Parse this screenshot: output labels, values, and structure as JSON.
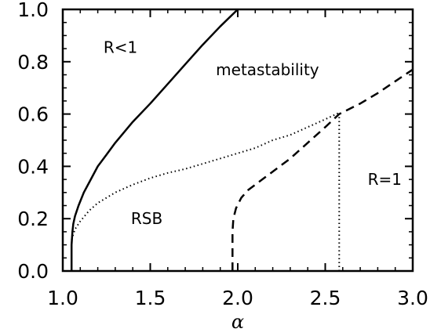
{
  "chart_data": {
    "type": "line",
    "title": "",
    "xlabel": "α",
    "ylabel": "",
    "xlim": [
      1.0,
      3.0
    ],
    "ylim": [
      0.0,
      1.0
    ],
    "x_ticks": [
      "1.0",
      "1.5",
      "2.0",
      "2.5",
      "3.0"
    ],
    "y_ticks": [
      "0.0",
      "0.2",
      "0.4",
      "0.6",
      "0.8",
      "1.0"
    ],
    "grid": false,
    "legend": "none",
    "series": [
      {
        "style": "solid",
        "x": [
          1.05,
          1.05,
          1.055,
          1.06,
          1.07,
          1.09,
          1.12,
          1.16,
          1.2,
          1.25,
          1.3,
          1.4,
          1.5,
          1.6,
          1.7,
          1.8,
          1.9,
          2.0
        ],
        "y": [
          0.0,
          0.1,
          0.15,
          0.18,
          0.21,
          0.25,
          0.3,
          0.35,
          0.4,
          0.445,
          0.49,
          0.57,
          0.64,
          0.715,
          0.79,
          0.865,
          0.935,
          1.0
        ]
      },
      {
        "style": "dotted",
        "x": [
          1.05,
          1.07,
          1.1,
          1.15,
          1.2,
          1.3,
          1.4,
          1.5,
          1.6,
          1.7,
          1.8,
          1.9,
          2.0,
          2.1,
          2.2,
          2.3,
          2.4,
          2.5,
          2.58
        ],
        "y": [
          0.12,
          0.16,
          0.19,
          0.23,
          0.26,
          0.3,
          0.33,
          0.355,
          0.375,
          0.39,
          0.41,
          0.43,
          0.45,
          0.47,
          0.5,
          0.52,
          0.55,
          0.58,
          0.605
        ]
      },
      {
        "style": "dashed",
        "x": [
          1.97,
          1.97,
          1.975,
          1.99,
          2.02,
          2.06,
          2.12,
          2.2,
          2.3,
          2.4,
          2.5,
          2.58,
          2.7,
          2.8,
          2.9,
          3.0
        ],
        "y": [
          0.0,
          0.15,
          0.2,
          0.24,
          0.28,
          0.31,
          0.34,
          0.38,
          0.43,
          0.49,
          0.55,
          0.6,
          0.64,
          0.68,
          0.725,
          0.77
        ]
      },
      {
        "style": "dotted",
        "x": [
          2.58,
          2.58
        ],
        "y": [
          0.0,
          0.605
        ]
      }
    ],
    "annotations": [
      {
        "text": "R<1",
        "x": 1.33,
        "y": 0.855
      },
      {
        "text": "metastability",
        "x": 2.17,
        "y": 0.77
      },
      {
        "text": "RSB",
        "x": 1.48,
        "y": 0.2
      },
      {
        "text": "R=1",
        "x": 2.84,
        "y": 0.35
      }
    ]
  }
}
